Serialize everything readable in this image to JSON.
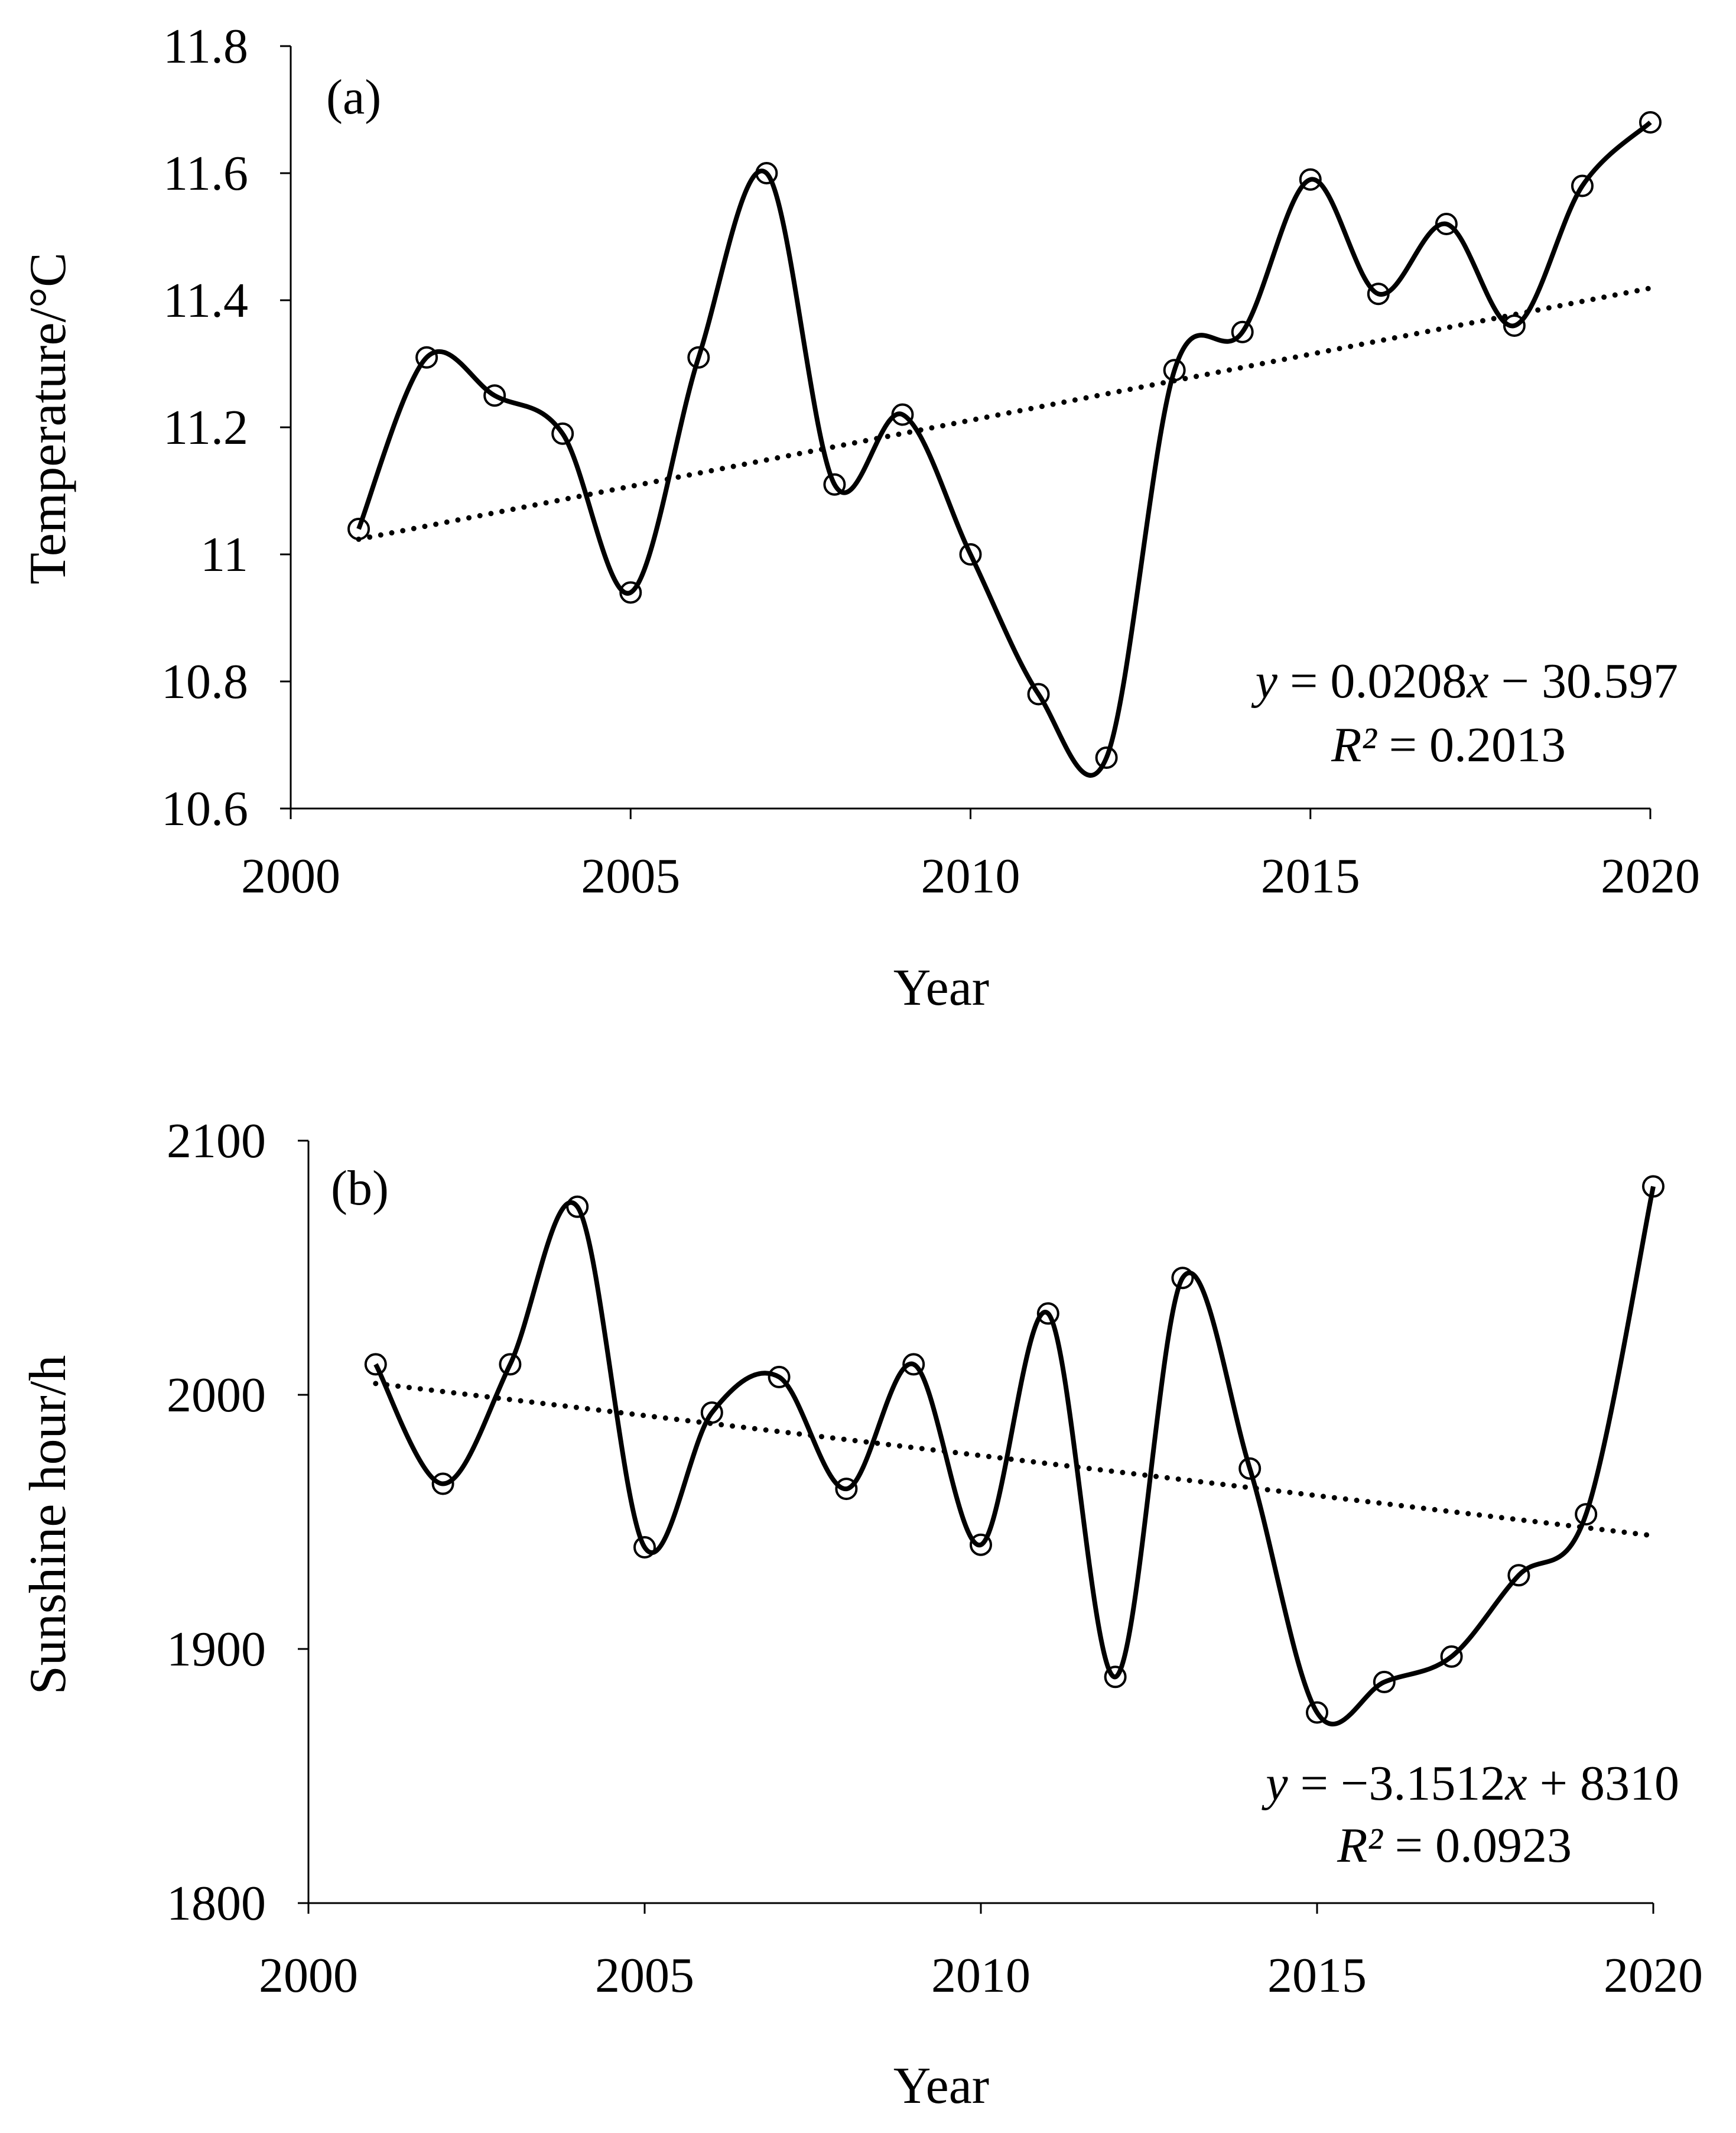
{
  "figure": {
    "colors": {
      "line": "#000000",
      "marker_fill": "#ffffff",
      "background": "#ffffff"
    }
  },
  "chart_data": [
    {
      "type": "line",
      "panel_label": "(a)",
      "title": "",
      "xlabel": "Year",
      "ylabel": "Temperature/°C",
      "xlim": [
        2000,
        2020
      ],
      "ylim": [
        10.6,
        11.8
      ],
      "x_ticks": [
        2000,
        2005,
        2010,
        2015,
        2020
      ],
      "x_tick_labels": [
        "2000",
        "2005",
        "2010",
        "2015",
        "2020"
      ],
      "y_ticks": [
        10.6,
        10.8,
        11.0,
        11.2,
        11.4,
        11.6,
        11.8
      ],
      "y_tick_labels": [
        "10.6",
        "10.8",
        "11",
        "11.2",
        "11.4",
        "11.6",
        "11.8"
      ],
      "grid": false,
      "series": [
        {
          "name": "Temperature",
          "style": "smooth-line-circle-markers",
          "x": [
            2001,
            2002,
            2003,
            2004,
            2005,
            2006,
            2007,
            2008,
            2009,
            2010,
            2011,
            2012,
            2013,
            2014,
            2015,
            2016,
            2017,
            2018,
            2019,
            2020
          ],
          "values": [
            11.04,
            11.31,
            11.25,
            11.19,
            10.94,
            11.31,
            11.6,
            11.11,
            11.22,
            11.0,
            10.78,
            10.68,
            11.29,
            11.35,
            11.59,
            11.41,
            11.52,
            11.36,
            11.58,
            11.68
          ]
        }
      ],
      "trendline": {
        "style": "dotted",
        "slope": 0.0208,
        "intercept": -30.597,
        "x_range": [
          2001,
          2020
        ]
      },
      "equation": {
        "y": "y",
        "eq_part1": " = 0.0208",
        "x": "x",
        "eq_part2": " − 30.597",
        "r2_symbol": "R²",
        "r2_value": " = 0.2013"
      }
    },
    {
      "type": "line",
      "panel_label": "(b)",
      "title": "",
      "xlabel": "Year",
      "ylabel": "Sunshine hour/h",
      "xlim": [
        2000,
        2020
      ],
      "ylim": [
        1800,
        2100
      ],
      "x_ticks": [
        2000,
        2005,
        2010,
        2015,
        2020
      ],
      "x_tick_labels": [
        "2000",
        "2005",
        "2010",
        "2015",
        "2020"
      ],
      "y_ticks": [
        1800,
        1900,
        2000,
        2100
      ],
      "y_tick_labels": [
        "1800",
        "1900",
        "2000",
        "2100"
      ],
      "grid": false,
      "series": [
        {
          "name": "Sunshine hours",
          "style": "smooth-line-circle-markers",
          "x": [
            2001,
            2002,
            2003,
            2004,
            2005,
            2006,
            2007,
            2008,
            2009,
            2010,
            2011,
            2012,
            2013,
            2014,
            2015,
            2016,
            2017,
            2018,
            2019,
            2020
          ],
          "values": [
            2012,
            1965,
            2012,
            2074,
            1940,
            1993,
            2007,
            1963,
            2012,
            1941,
            2032,
            1889,
            2046,
            1971,
            1875,
            1887,
            1897,
            1929,
            1953,
            2082
          ]
        }
      ],
      "trendline": {
        "style": "dotted",
        "slope": -3.1512,
        "intercept": 8310,
        "x_range": [
          2001,
          2020
        ]
      },
      "equation": {
        "y": "y",
        "eq_part1": " = −3.1512",
        "x": "x",
        "eq_part2": " + 8310",
        "r2_symbol": "R²",
        "r2_value": " = 0.0923"
      }
    }
  ]
}
